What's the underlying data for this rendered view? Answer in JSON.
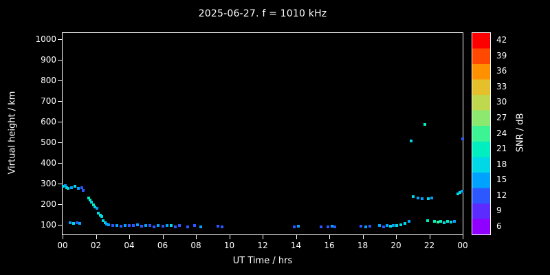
{
  "title": "2025-06-27. f = 1010 kHz",
  "axes": {
    "x_label": "UT Time / hrs",
    "y_label": "Virtual height / km",
    "x_ticks": [
      "00",
      "02",
      "04",
      "06",
      "08",
      "10",
      "12",
      "14",
      "16",
      "18",
      "20",
      "22",
      "00"
    ],
    "y_ticks": [
      "100",
      "200",
      "300",
      "400",
      "500",
      "600",
      "700",
      "800",
      "900",
      "1000"
    ]
  },
  "colorbar": {
    "label": "SNR / dB",
    "ticks_top_to_bottom": [
      "42",
      "39",
      "36",
      "33",
      "30",
      "27",
      "24",
      "21",
      "18",
      "15",
      "12",
      "9",
      "6"
    ],
    "stops_ascending": [
      [
        6,
        "#9000ff"
      ],
      [
        9,
        "#5b2bff"
      ],
      [
        12,
        "#2e58ff"
      ],
      [
        15,
        "#00a2ff"
      ],
      [
        18,
        "#00d8e8"
      ],
      [
        21,
        "#00eec0"
      ],
      [
        24,
        "#3cf494"
      ],
      [
        27,
        "#8ce86e"
      ],
      [
        30,
        "#c0d84e"
      ],
      [
        33,
        "#e6c02a"
      ],
      [
        36,
        "#ff9000"
      ],
      [
        39,
        "#ff4800"
      ],
      [
        42,
        "#ff0000"
      ]
    ]
  },
  "chart_data": {
    "type": "scatter",
    "title": "2025-06-27. f = 1010 kHz",
    "xlabel": "UT Time / hrs",
    "ylabel": "Virtual height / km",
    "xlim": [
      0,
      24
    ],
    "ylim": [
      100,
      1000
    ],
    "colorbar_label": "SNR / dB",
    "colorbar_range": [
      6,
      42
    ],
    "background": "#000000",
    "point_fields": [
      "ut_hours",
      "virtual_height_km",
      "snr_db"
    ],
    "points": [
      [
        0.05,
        290,
        18
      ],
      [
        0.15,
        295,
        15
      ],
      [
        0.25,
        285,
        18
      ],
      [
        0.35,
        280,
        18
      ],
      [
        0.55,
        285,
        15
      ],
      [
        0.75,
        290,
        18
      ],
      [
        0.95,
        280,
        15
      ],
      [
        1.15,
        285,
        12
      ],
      [
        1.25,
        270,
        12
      ],
      [
        0.45,
        115,
        15
      ],
      [
        0.65,
        110,
        18
      ],
      [
        0.85,
        115,
        12
      ],
      [
        1.05,
        110,
        15
      ],
      [
        1.55,
        235,
        21
      ],
      [
        1.65,
        225,
        21
      ],
      [
        1.75,
        215,
        18
      ],
      [
        1.85,
        200,
        21
      ],
      [
        1.95,
        190,
        18
      ],
      [
        2.05,
        185,
        15
      ],
      [
        2.15,
        160,
        18
      ],
      [
        2.25,
        150,
        21
      ],
      [
        2.35,
        145,
        18
      ],
      [
        2.45,
        125,
        18
      ],
      [
        2.55,
        115,
        18
      ],
      [
        2.65,
        108,
        15
      ],
      [
        2.75,
        105,
        15
      ],
      [
        3.0,
        100,
        12
      ],
      [
        3.25,
        100,
        15
      ],
      [
        3.5,
        98,
        12
      ],
      [
        3.75,
        100,
        15
      ],
      [
        4.0,
        100,
        12
      ],
      [
        4.25,
        100,
        12
      ],
      [
        4.5,
        102,
        15
      ],
      [
        4.75,
        98,
        12
      ],
      [
        5.0,
        100,
        15
      ],
      [
        5.25,
        100,
        12
      ],
      [
        5.5,
        95,
        12
      ],
      [
        5.75,
        100,
        15
      ],
      [
        6.0,
        98,
        12
      ],
      [
        6.25,
        100,
        15
      ],
      [
        6.5,
        100,
        18
      ],
      [
        6.75,
        95,
        12
      ],
      [
        7.0,
        100,
        12
      ],
      [
        7.5,
        95,
        12
      ],
      [
        7.9,
        100,
        12
      ],
      [
        8.3,
        95,
        15
      ],
      [
        9.3,
        98,
        12
      ],
      [
        9.55,
        95,
        12
      ],
      [
        13.9,
        95,
        12
      ],
      [
        14.15,
        98,
        15
      ],
      [
        15.5,
        95,
        12
      ],
      [
        15.9,
        95,
        12
      ],
      [
        16.15,
        98,
        15
      ],
      [
        16.35,
        95,
        12
      ],
      [
        17.9,
        98,
        12
      ],
      [
        18.2,
        95,
        15
      ],
      [
        18.45,
        98,
        12
      ],
      [
        19.0,
        100,
        15
      ],
      [
        19.25,
        95,
        12
      ],
      [
        19.45,
        100,
        15
      ],
      [
        19.65,
        98,
        18
      ],
      [
        19.85,
        100,
        15
      ],
      [
        20.05,
        100,
        18
      ],
      [
        20.3,
        105,
        18
      ],
      [
        20.55,
        110,
        18
      ],
      [
        20.8,
        120,
        15
      ],
      [
        20.9,
        510,
        18
      ],
      [
        21.05,
        240,
        18
      ],
      [
        21.3,
        235,
        15
      ],
      [
        21.55,
        230,
        15
      ],
      [
        21.75,
        590,
        21
      ],
      [
        21.95,
        230,
        18
      ],
      [
        22.15,
        235,
        15
      ],
      [
        21.9,
        125,
        21
      ],
      [
        22.3,
        120,
        21
      ],
      [
        22.5,
        118,
        24
      ],
      [
        22.7,
        120,
        21
      ],
      [
        22.9,
        115,
        18
      ],
      [
        23.1,
        120,
        21
      ],
      [
        23.3,
        118,
        18
      ],
      [
        23.5,
        120,
        15
      ],
      [
        23.7,
        255,
        18
      ],
      [
        23.85,
        260,
        18
      ],
      [
        23.95,
        268,
        15
      ],
      [
        23.98,
        520,
        12
      ]
    ]
  }
}
